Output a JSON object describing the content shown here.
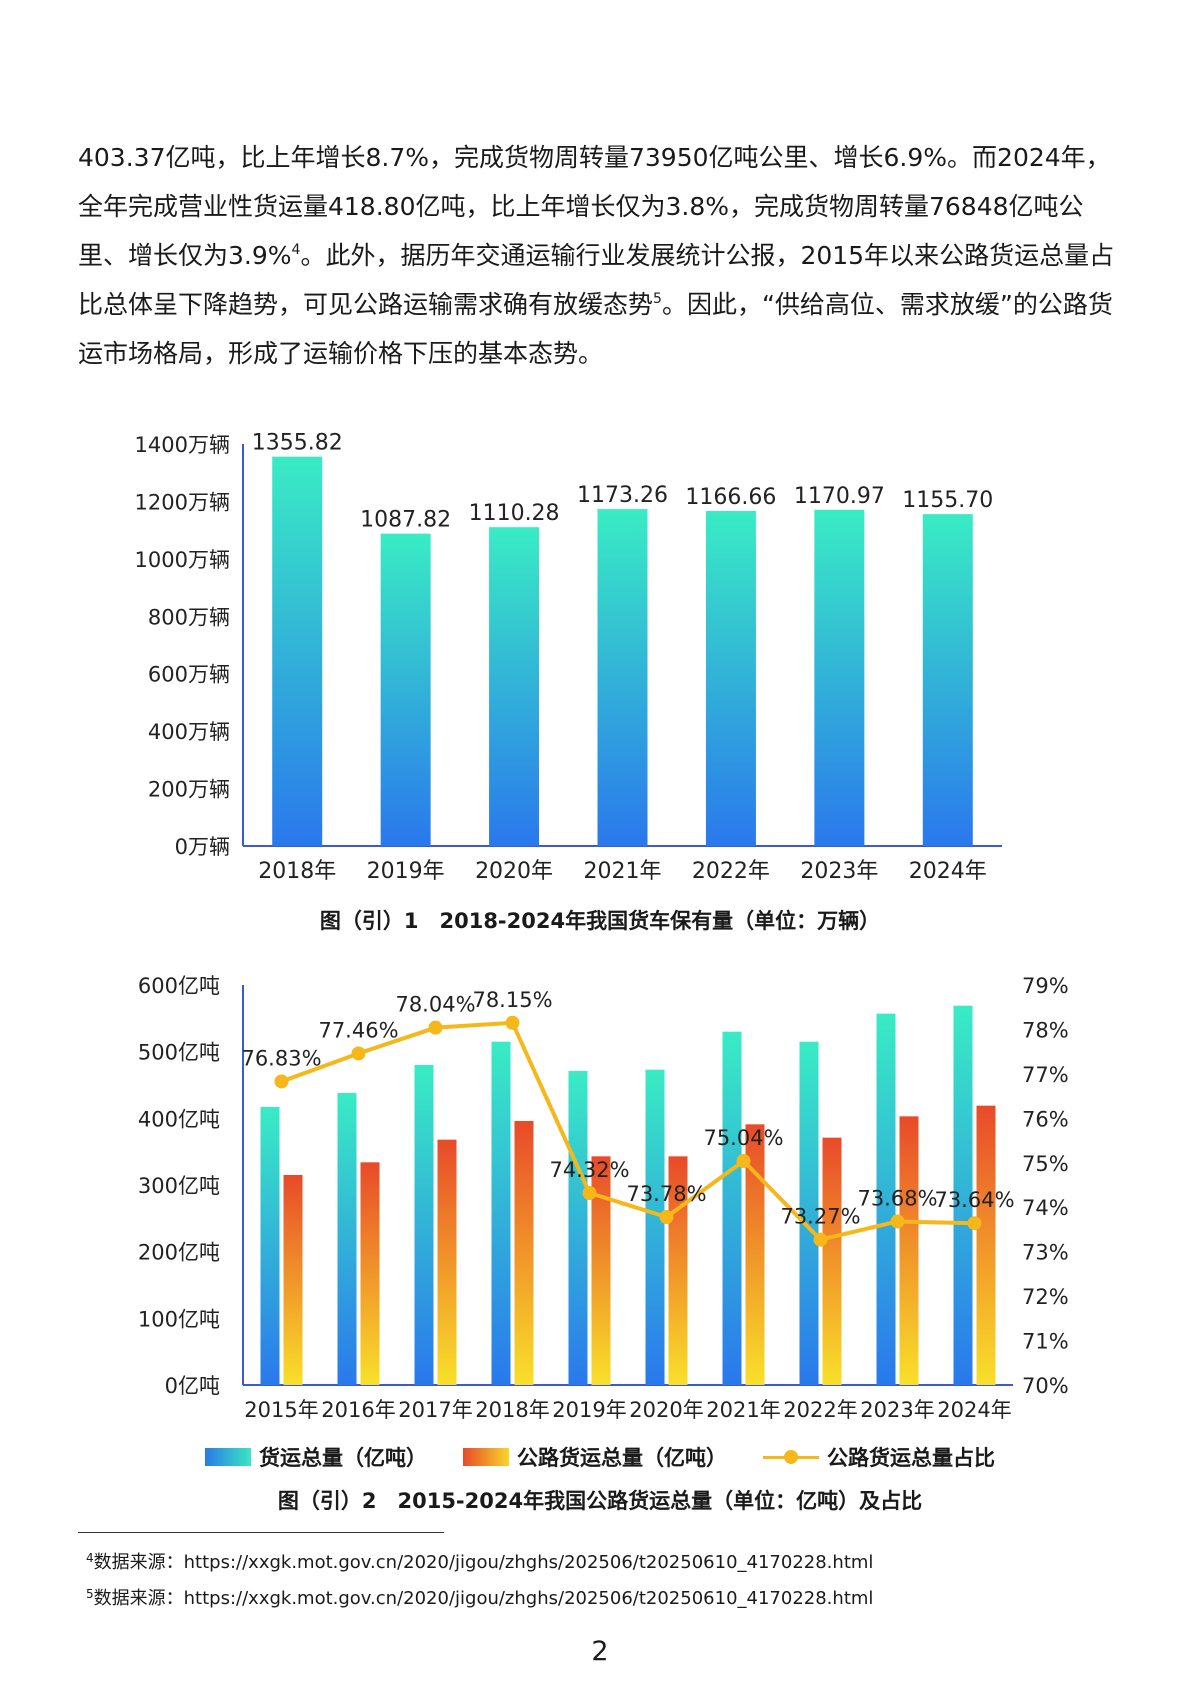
{
  "paragraph": {
    "text_a": "403.37亿吨，比上年增长8.7%，完成货物周转量73950亿吨公里、增长6.9%。而2024年，全年完成营业性货运量418.80亿吨，比上年增长仅为3.8%，完成货物周转量76848亿吨公里、增长仅为3.9%",
    "sup_a": "4",
    "text_b": "。此外，据历年交通运输行业发展统计公报，2015年以来公路货运总量占比总体呈下降趋势，可见公路运输需求确有放缓态势",
    "sup_b": "5",
    "text_c": "。因此，“供给高位、需求放缓”的公路货运市场格局，形成了运输价格下压的基本态势。"
  },
  "chart_data": [
    {
      "type": "bar",
      "title": "图（引）1　2018-2024年我国货车保有量（单位：万辆）",
      "categories": [
        "2018年",
        "2019年",
        "2020年",
        "2021年",
        "2022年",
        "2023年",
        "2024年"
      ],
      "values": [
        1355.82,
        1087.82,
        1110.28,
        1173.26,
        1166.66,
        1170.97,
        1155.7
      ],
      "data_labels": [
        "1355.82",
        "1087.82",
        "1110.28",
        "1173.26",
        "1166.66",
        "1170.97",
        "1155.70"
      ],
      "ylim": [
        0,
        1400
      ],
      "yticks": [
        0,
        200,
        400,
        600,
        800,
        1000,
        1200,
        1400
      ],
      "ytick_labels": [
        "0万辆",
        "200万辆",
        "400万辆",
        "600万辆",
        "800万辆",
        "1000万辆",
        "1200万辆",
        "1400万辆"
      ],
      "colors": {
        "bar_top": "#39ecc4",
        "bar_bottom": "#2a78ec",
        "axis": "#3b5bd6"
      },
      "grid": false,
      "legend": "none"
    },
    {
      "type": "bar",
      "title": "图（引）2　2015-2024年我国公路货运总量（单位：亿吨）及占比",
      "categories": [
        "2015年",
        "2016年",
        "2017年",
        "2018年",
        "2019年",
        "2020年",
        "2021年",
        "2022年",
        "2023年",
        "2024年"
      ],
      "series": [
        {
          "name": "货运总量（亿吨）",
          "kind": "bar",
          "axis": "left",
          "values": [
            417,
            438,
            480,
            515,
            471,
            473,
            530,
            515,
            557,
            569
          ]
        },
        {
          "name": "公路货运总量（亿吨）",
          "kind": "bar",
          "axis": "left",
          "values": [
            315,
            334,
            368,
            396,
            343,
            343,
            391,
            371,
            403,
            419
          ]
        },
        {
          "name": "公路货运总量占比",
          "kind": "line",
          "axis": "right",
          "values": [
            76.83,
            77.46,
            78.04,
            78.15,
            74.32,
            73.78,
            75.04,
            73.27,
            73.68,
            73.64
          ],
          "labels": [
            "76.83%",
            "77.46%",
            "78.04%",
            "78.15%",
            "74.32%",
            "73.78%",
            "75.04%",
            "73.27%",
            "73.68%",
            "73.64%"
          ]
        }
      ],
      "ylim": [
        0,
        600
      ],
      "yticks": [
        0,
        100,
        200,
        300,
        400,
        500,
        600
      ],
      "ytick_labels": [
        "0亿吨",
        "100亿吨",
        "200亿吨",
        "300亿吨",
        "400亿吨",
        "500亿吨",
        "600亿吨"
      ],
      "y2lim": [
        70,
        79
      ],
      "y2ticks": [
        70,
        71,
        72,
        73,
        74,
        75,
        76,
        77,
        78,
        79
      ],
      "y2tick_labels": [
        "70%",
        "71%",
        "72%",
        "73%",
        "74%",
        "75%",
        "76%",
        "77%",
        "78%",
        "79%"
      ],
      "colors": {
        "bar1_top": "#39ecc4",
        "bar1_bottom": "#2a78ec",
        "bar2_top": "#e84a2a",
        "bar2_bottom": "#f9e02a",
        "line": "#f5b71a",
        "axis": "#3b5bd6"
      },
      "grid": false,
      "legend": "bottom"
    }
  ],
  "footnotes": [
    {
      "num": "4",
      "text": "数据来源：https://xxgk.mot.gov.cn/2020/jigou/zhghs/202506/t20250610_4170228.html"
    },
    {
      "num": "5",
      "text": "数据来源：https://xxgk.mot.gov.cn/2020/jigou/zhghs/202506/t20250610_4170228.html"
    }
  ],
  "page_number": "2"
}
